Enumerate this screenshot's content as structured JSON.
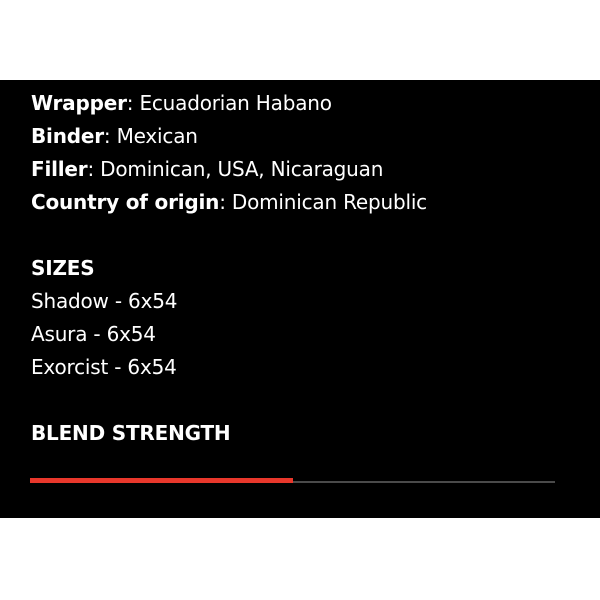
{
  "specs": [
    {
      "label": "Wrapper",
      "value": "Ecuadorian Habano"
    },
    {
      "label": "Binder",
      "value": "Mexican"
    },
    {
      "label": "Filler",
      "value": "Dominican, USA, Nicaraguan"
    },
    {
      "label": "Country of origin",
      "value": "Dominican Republic"
    }
  ],
  "separator": ": ",
  "sizes_heading": "SIZES",
  "sizes": [
    "Shadow - 6x54",
    "Asura - 6x54",
    "Exorcist - 6x54"
  ],
  "strength_heading": "BLEND STRENGTH",
  "strength": {
    "percent": 50,
    "fill_color": "#e8372b",
    "track_color": "#4a4a4a"
  }
}
